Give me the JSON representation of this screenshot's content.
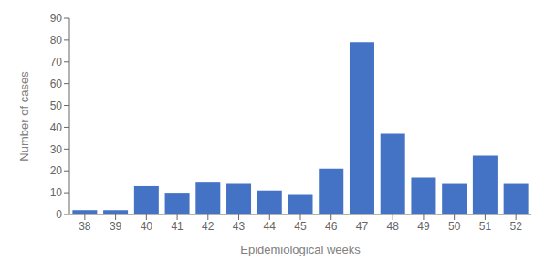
{
  "chart_data": {
    "type": "bar",
    "categories": [
      "38",
      "39",
      "40",
      "41",
      "42",
      "43",
      "44",
      "45",
      "46",
      "47",
      "48",
      "49",
      "50",
      "51",
      "52"
    ],
    "values": [
      2,
      2,
      13,
      10,
      15,
      14,
      11,
      9,
      21,
      79,
      37,
      17,
      14,
      27,
      14
    ],
    "color": "#4472C4",
    "xlabel": "Epidemiological weeks",
    "ylabel": "Number of cases",
    "ylim": [
      0,
      90
    ],
    "yticks": [
      0,
      10,
      20,
      30,
      40,
      50,
      60,
      70,
      80,
      90
    ],
    "grid": false
  }
}
